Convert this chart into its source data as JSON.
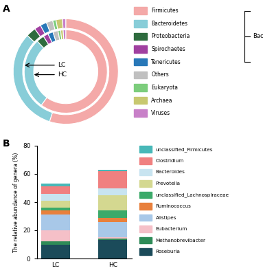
{
  "donut": {
    "LC": {
      "Firmicutes": 55,
      "Bacteroidetes": 32,
      "Proteobacteria": 3,
      "Spirochaetes": 2,
      "Tenericutes": 2,
      "Others": 2,
      "Eukaryota": 1,
      "Archaea": 2,
      "Viruses": 1
    },
    "HC": {
      "Firmicutes": 60,
      "Bacteroidetes": 28,
      "Proteobacteria": 3,
      "Spirochaetes": 2,
      "Tenericutes": 2,
      "Others": 2,
      "Eukaryota": 1,
      "Archaea": 1,
      "Viruses": 1
    }
  },
  "donut_colors": {
    "Firmicutes": "#F4A9A8",
    "Bacteroidetes": "#88CDD8",
    "Proteobacteria": "#2E6B3E",
    "Spirochaetes": "#A040A0",
    "Tenericutes": "#2878B8",
    "Others": "#C0C0C0",
    "Eukaryota": "#7CCD7C",
    "Archaea": "#C8C870",
    "Viruses": "#C880C8"
  },
  "bar": {
    "LC": {
      "Roseburia": 10,
      "Methanobrevibacter": 2,
      "Eubacterium": 8,
      "Alistipes": 11,
      "Ruminococcus": 3,
      "unclassified_Lachnospiraceae": 2,
      "Prevotella": 5,
      "Bacteroides": 5,
      "Clostridium": 5,
      "unclassified_Firmicutes": 2
    },
    "HC": {
      "Roseburia": 13,
      "Methanobrevibacter": 1,
      "Eubacterium": 1,
      "Alistipes": 11,
      "Ruminococcus": 3,
      "unclassified_Lachnospiraceae": 5,
      "Prevotella": 11,
      "Bacteroides": 5,
      "Clostridium": 12,
      "unclassified_Firmicutes": 1
    }
  },
  "bar_colors": {
    "Roseburia": "#1B4B5A",
    "Methanobrevibacter": "#2E8B57",
    "Eubacterium": "#F5C0C8",
    "Alistipes": "#A8C8E8",
    "Ruminococcus": "#E8803C",
    "unclassified_Lachnospiraceae": "#3CAA6A",
    "Prevotella": "#D4D890",
    "Bacteroides": "#C8E4F0",
    "Clostridium": "#F08080",
    "unclassified_Firmicutes": "#48B8B8"
  },
  "bar_ylabel": "The relative abundance of genera (%)",
  "bar_ylim": [
    0,
    80
  ],
  "bar_yticks": [
    0,
    20,
    40,
    60,
    80
  ],
  "panel_a_label": "A",
  "panel_b_label": "B",
  "bacteria_label": "Bacteria"
}
